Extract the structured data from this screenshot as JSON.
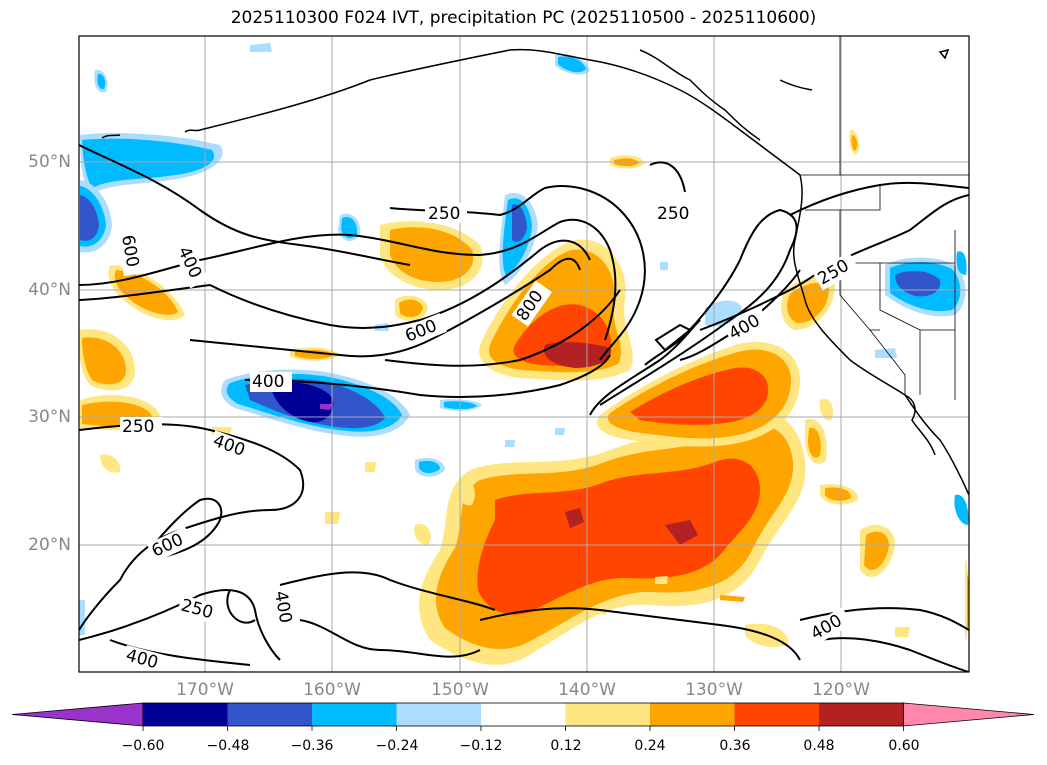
{
  "title": "2025110300 F024 IVT, precipitation PC (2025110500 - 2025110600)",
  "latitude_labels": [
    "50°N",
    "40°N",
    "30°N",
    "20°N"
  ],
  "longitude_labels": [
    "170°W",
    "160°W",
    "150°W",
    "140°W",
    "130°W",
    "120°W"
  ],
  "ivt_contour_labels": [
    "250",
    "250",
    "250",
    "250",
    "250",
    "400",
    "400",
    "400",
    "400",
    "400",
    "400",
    "400",
    "600",
    "600",
    "600",
    "800"
  ],
  "colorbar": {
    "tick_labels": [
      "−0.60",
      "−0.48",
      "−0.36",
      "−0.24",
      "−0.12",
      "0.12",
      "0.24",
      "0.36",
      "0.48",
      "0.60"
    ],
    "colors": [
      "#9933cc",
      "#000099",
      "#3355cc",
      "#00bbff",
      "#aaddff",
      "#ffffff",
      "#ffe680",
      "#ffa500",
      "#ff4500",
      "#b22222",
      "#ff88aa"
    ]
  },
  "colors": {
    "land_outline": "#000000",
    "contour": "#000000",
    "gridline": "#aaaaaa",
    "axis_label": "#888888"
  }
}
